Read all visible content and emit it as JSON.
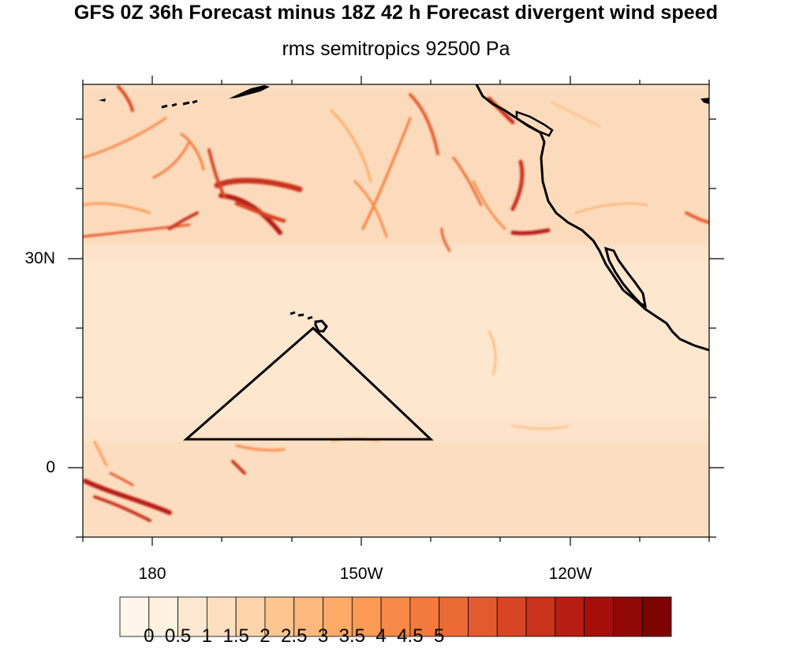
{
  "title": "GFS 0Z 36h Forecast minus 18Z 42 h Forecast divergent wind speed",
  "subtitle": "rms semitropics 92500 Pa",
  "lat_labels": [
    "30N",
    "0"
  ],
  "lon_labels": [
    "180",
    "150W",
    "120W"
  ],
  "colorbar": {
    "labels": [
      "0",
      "0.5",
      "1",
      "1.5",
      "2",
      "2.5",
      "3",
      "3.5",
      "4",
      "4.5",
      "5"
    ],
    "colors": [
      "#fff5eb",
      "#fff0df",
      "#fee8d2",
      "#fedfc0",
      "#fdd4ab",
      "#fdc590",
      "#fdb97d",
      "#fdab67",
      "#fd9a55",
      "#f78a49",
      "#f27a3c",
      "#ec6a35",
      "#e45a2f",
      "#d74524",
      "#c9321b",
      "#b71d12",
      "#a60f09",
      "#920805",
      "#7d0303"
    ]
  },
  "chart_data": {
    "type": "heatmap",
    "title": "GFS 0Z 36h Forecast minus 18Z 42 h Forecast divergent wind speed",
    "subtitle": "rms semitropics 92500 Pa",
    "map_type": "filled contour map, North Pacific",
    "x_ticks_labeled": [
      "180",
      "150W",
      "120W"
    ],
    "y_ticks_labeled": [
      "30N",
      "0"
    ],
    "colorbar_levels": [
      0,
      0.5,
      1,
      1.5,
      2,
      2.5,
      3,
      3.5,
      4,
      4.5,
      5
    ],
    "annotation": "triangle outline south of Hawaii"
  }
}
